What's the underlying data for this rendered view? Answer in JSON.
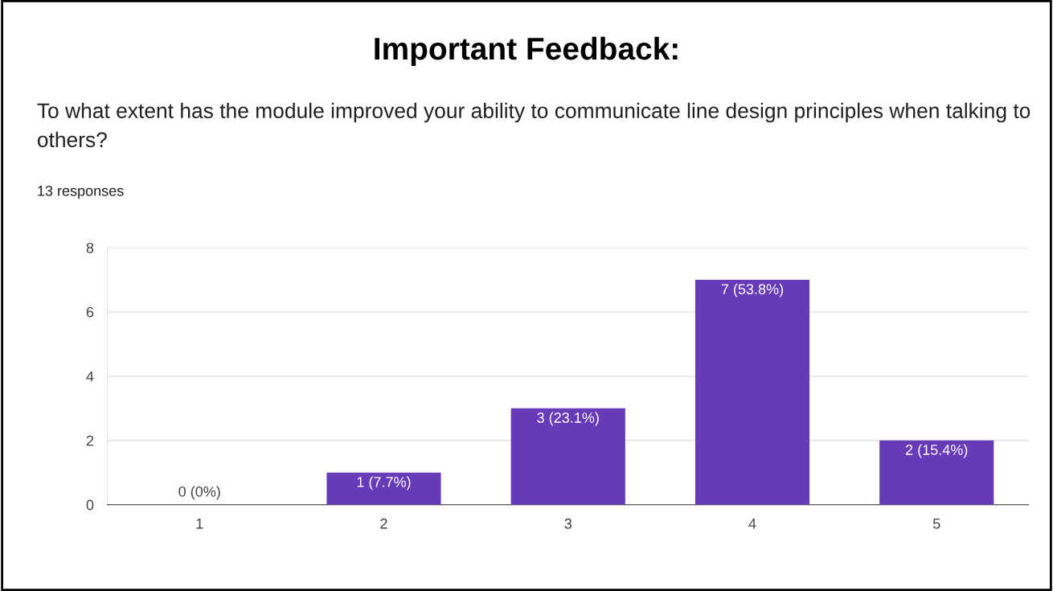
{
  "chart_data": {
    "type": "bar",
    "title": "Important Feedback:",
    "subtitle": "To what extent has the module improved your ability to communicate line design principles when talking to others?",
    "annotations": [
      "13 responses"
    ],
    "categories": [
      "1",
      "2",
      "3",
      "4",
      "5"
    ],
    "values": [
      0,
      1,
      3,
      7,
      2
    ],
    "value_labels": [
      "0 (0%)",
      "1 (7.7%)",
      "3 (23.1%)",
      "7 (53.8%)",
      "2 (15.4%)"
    ],
    "color": "#673ab7",
    "ylim": [
      0,
      8
    ],
    "yticks": [
      0,
      2,
      4,
      6,
      8
    ],
    "grid": "y"
  }
}
